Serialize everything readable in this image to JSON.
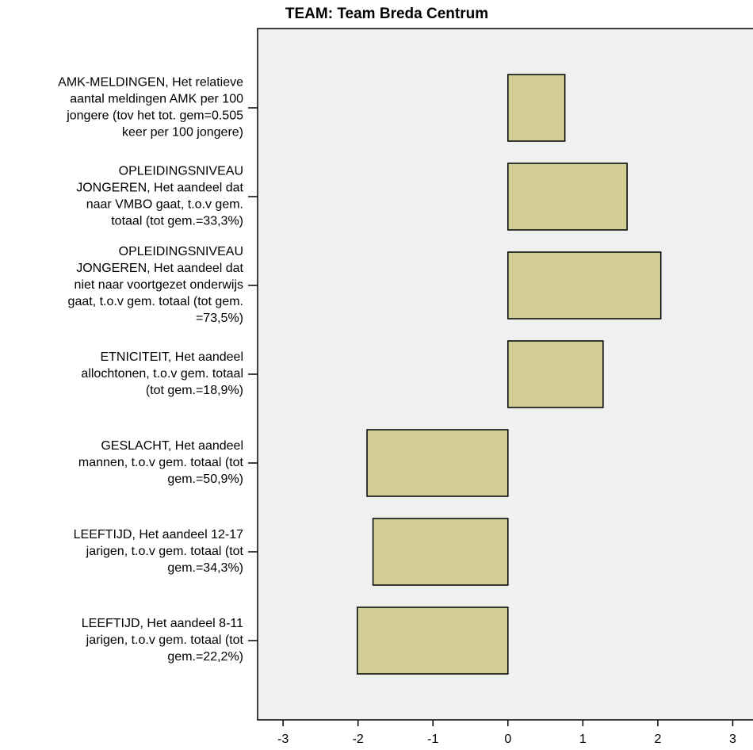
{
  "chart_data": {
    "type": "barh",
    "title": "TEAM: Team Breda Centrum",
    "categories": [
      [
        "AMK-MELDINGEN, Het relatieve",
        "aantal meldingen AMK per 100",
        "jongere (tov het tot. gem=0.505",
        "keer per 100 jongere)"
      ],
      [
        "OPLEIDINGSNIVEAU",
        "JONGEREN, Het aandeel dat",
        "naar VMBO gaat, t.o.v gem.",
        "totaal (tot gem.=33,3%)"
      ],
      [
        "OPLEIDINGSNIVEAU",
        "JONGEREN, Het aandeel dat",
        "niet naar voortgezet onderwijs",
        "gaat, t.o.v gem. totaal (tot gem.",
        "=73,5%)"
      ],
      [
        "ETNICITEIT, Het aandeel",
        "allochtonen, t.o.v gem. totaal",
        "(tot gem.=18,9%)"
      ],
      [
        "GESLACHT, Het aandeel",
        "mannen, t.o.v gem. totaal (tot",
        "gem.=50,9%)"
      ],
      [
        "LEEFTIJD, Het aandeel 12-17",
        "jarigen, t.o.v gem. totaal (tot",
        "gem.=34,3%)"
      ],
      [
        "LEEFTIJD, Het aandeel 8-11",
        "jarigen, t.o.v gem. totaal (tot",
        "gem.=22,2%)"
      ]
    ],
    "values": [
      0.76,
      1.59,
      2.04,
      1.27,
      -1.88,
      -1.8,
      -2.01
    ],
    "color": "#d3ce96",
    "xlim": [
      -3.34,
      3.27
    ],
    "xticks": [
      -3,
      -2,
      -1,
      0,
      1,
      2,
      3
    ]
  }
}
